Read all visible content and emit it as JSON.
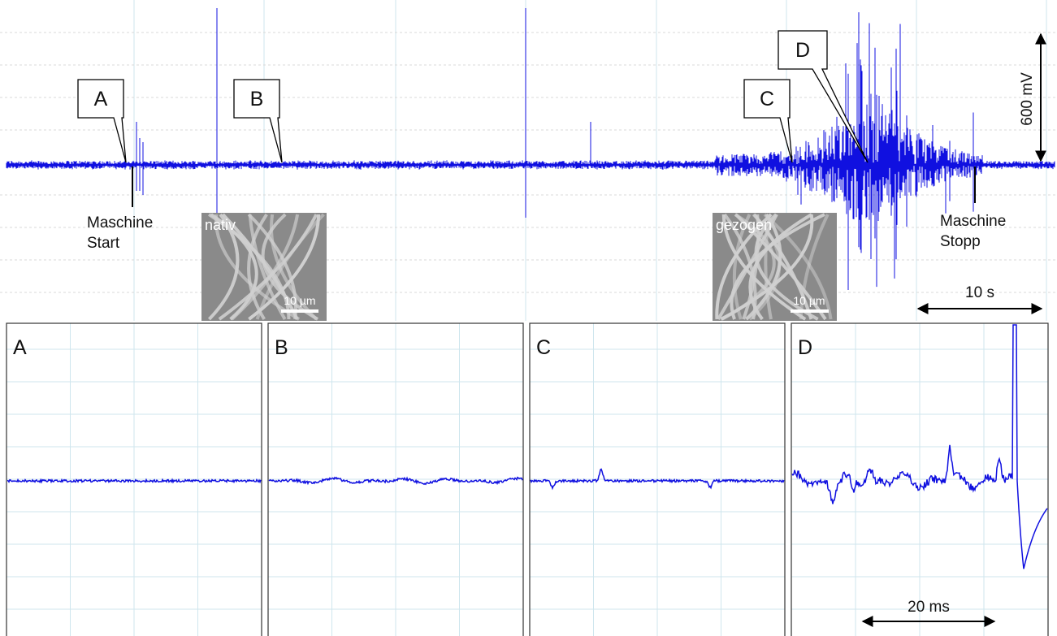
{
  "callouts": [
    "A",
    "B",
    "C",
    "D"
  ],
  "start_label": [
    "Maschine",
    "Start"
  ],
  "stop_label": [
    "Maschine",
    "Stopp"
  ],
  "insets": [
    {
      "label": "nativ",
      "scale": "10 µm"
    },
    {
      "label": "gezogen",
      "scale": "10 µm"
    }
  ],
  "voltage_scale": "600 mV",
  "time_scale_top": "10 s",
  "panels": [
    "A",
    "B",
    "C",
    "D"
  ],
  "time_scale_bottom": "20 ms"
}
